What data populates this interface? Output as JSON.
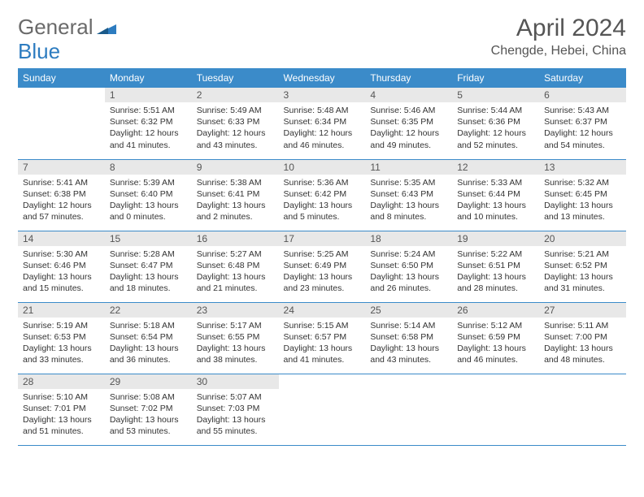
{
  "logo": {
    "text1": "General",
    "text2": "Blue"
  },
  "title": "April 2024",
  "location": "Chengde, Hebei, China",
  "colors": {
    "header_bg": "#3b8bc9",
    "header_fg": "#ffffff",
    "daynum_bg": "#e8e8e8",
    "border": "#3b8bc9"
  },
  "weekdays": [
    "Sunday",
    "Monday",
    "Tuesday",
    "Wednesday",
    "Thursday",
    "Friday",
    "Saturday"
  ],
  "weeks": [
    [
      {
        "num": "",
        "sunrise": "",
        "sunset": "",
        "daylight": ""
      },
      {
        "num": "1",
        "sunrise": "Sunrise: 5:51 AM",
        "sunset": "Sunset: 6:32 PM",
        "daylight": "Daylight: 12 hours and 41 minutes."
      },
      {
        "num": "2",
        "sunrise": "Sunrise: 5:49 AM",
        "sunset": "Sunset: 6:33 PM",
        "daylight": "Daylight: 12 hours and 43 minutes."
      },
      {
        "num": "3",
        "sunrise": "Sunrise: 5:48 AM",
        "sunset": "Sunset: 6:34 PM",
        "daylight": "Daylight: 12 hours and 46 minutes."
      },
      {
        "num": "4",
        "sunrise": "Sunrise: 5:46 AM",
        "sunset": "Sunset: 6:35 PM",
        "daylight": "Daylight: 12 hours and 49 minutes."
      },
      {
        "num": "5",
        "sunrise": "Sunrise: 5:44 AM",
        "sunset": "Sunset: 6:36 PM",
        "daylight": "Daylight: 12 hours and 52 minutes."
      },
      {
        "num": "6",
        "sunrise": "Sunrise: 5:43 AM",
        "sunset": "Sunset: 6:37 PM",
        "daylight": "Daylight: 12 hours and 54 minutes."
      }
    ],
    [
      {
        "num": "7",
        "sunrise": "Sunrise: 5:41 AM",
        "sunset": "Sunset: 6:38 PM",
        "daylight": "Daylight: 12 hours and 57 minutes."
      },
      {
        "num": "8",
        "sunrise": "Sunrise: 5:39 AM",
        "sunset": "Sunset: 6:40 PM",
        "daylight": "Daylight: 13 hours and 0 minutes."
      },
      {
        "num": "9",
        "sunrise": "Sunrise: 5:38 AM",
        "sunset": "Sunset: 6:41 PM",
        "daylight": "Daylight: 13 hours and 2 minutes."
      },
      {
        "num": "10",
        "sunrise": "Sunrise: 5:36 AM",
        "sunset": "Sunset: 6:42 PM",
        "daylight": "Daylight: 13 hours and 5 minutes."
      },
      {
        "num": "11",
        "sunrise": "Sunrise: 5:35 AM",
        "sunset": "Sunset: 6:43 PM",
        "daylight": "Daylight: 13 hours and 8 minutes."
      },
      {
        "num": "12",
        "sunrise": "Sunrise: 5:33 AM",
        "sunset": "Sunset: 6:44 PM",
        "daylight": "Daylight: 13 hours and 10 minutes."
      },
      {
        "num": "13",
        "sunrise": "Sunrise: 5:32 AM",
        "sunset": "Sunset: 6:45 PM",
        "daylight": "Daylight: 13 hours and 13 minutes."
      }
    ],
    [
      {
        "num": "14",
        "sunrise": "Sunrise: 5:30 AM",
        "sunset": "Sunset: 6:46 PM",
        "daylight": "Daylight: 13 hours and 15 minutes."
      },
      {
        "num": "15",
        "sunrise": "Sunrise: 5:28 AM",
        "sunset": "Sunset: 6:47 PM",
        "daylight": "Daylight: 13 hours and 18 minutes."
      },
      {
        "num": "16",
        "sunrise": "Sunrise: 5:27 AM",
        "sunset": "Sunset: 6:48 PM",
        "daylight": "Daylight: 13 hours and 21 minutes."
      },
      {
        "num": "17",
        "sunrise": "Sunrise: 5:25 AM",
        "sunset": "Sunset: 6:49 PM",
        "daylight": "Daylight: 13 hours and 23 minutes."
      },
      {
        "num": "18",
        "sunrise": "Sunrise: 5:24 AM",
        "sunset": "Sunset: 6:50 PM",
        "daylight": "Daylight: 13 hours and 26 minutes."
      },
      {
        "num": "19",
        "sunrise": "Sunrise: 5:22 AM",
        "sunset": "Sunset: 6:51 PM",
        "daylight": "Daylight: 13 hours and 28 minutes."
      },
      {
        "num": "20",
        "sunrise": "Sunrise: 5:21 AM",
        "sunset": "Sunset: 6:52 PM",
        "daylight": "Daylight: 13 hours and 31 minutes."
      }
    ],
    [
      {
        "num": "21",
        "sunrise": "Sunrise: 5:19 AM",
        "sunset": "Sunset: 6:53 PM",
        "daylight": "Daylight: 13 hours and 33 minutes."
      },
      {
        "num": "22",
        "sunrise": "Sunrise: 5:18 AM",
        "sunset": "Sunset: 6:54 PM",
        "daylight": "Daylight: 13 hours and 36 minutes."
      },
      {
        "num": "23",
        "sunrise": "Sunrise: 5:17 AM",
        "sunset": "Sunset: 6:55 PM",
        "daylight": "Daylight: 13 hours and 38 minutes."
      },
      {
        "num": "24",
        "sunrise": "Sunrise: 5:15 AM",
        "sunset": "Sunset: 6:57 PM",
        "daylight": "Daylight: 13 hours and 41 minutes."
      },
      {
        "num": "25",
        "sunrise": "Sunrise: 5:14 AM",
        "sunset": "Sunset: 6:58 PM",
        "daylight": "Daylight: 13 hours and 43 minutes."
      },
      {
        "num": "26",
        "sunrise": "Sunrise: 5:12 AM",
        "sunset": "Sunset: 6:59 PM",
        "daylight": "Daylight: 13 hours and 46 minutes."
      },
      {
        "num": "27",
        "sunrise": "Sunrise: 5:11 AM",
        "sunset": "Sunset: 7:00 PM",
        "daylight": "Daylight: 13 hours and 48 minutes."
      }
    ],
    [
      {
        "num": "28",
        "sunrise": "Sunrise: 5:10 AM",
        "sunset": "Sunset: 7:01 PM",
        "daylight": "Daylight: 13 hours and 51 minutes."
      },
      {
        "num": "29",
        "sunrise": "Sunrise: 5:08 AM",
        "sunset": "Sunset: 7:02 PM",
        "daylight": "Daylight: 13 hours and 53 minutes."
      },
      {
        "num": "30",
        "sunrise": "Sunrise: 5:07 AM",
        "sunset": "Sunset: 7:03 PM",
        "daylight": "Daylight: 13 hours and 55 minutes."
      },
      {
        "num": "",
        "sunrise": "",
        "sunset": "",
        "daylight": ""
      },
      {
        "num": "",
        "sunrise": "",
        "sunset": "",
        "daylight": ""
      },
      {
        "num": "",
        "sunrise": "",
        "sunset": "",
        "daylight": ""
      },
      {
        "num": "",
        "sunrise": "",
        "sunset": "",
        "daylight": ""
      }
    ]
  ]
}
